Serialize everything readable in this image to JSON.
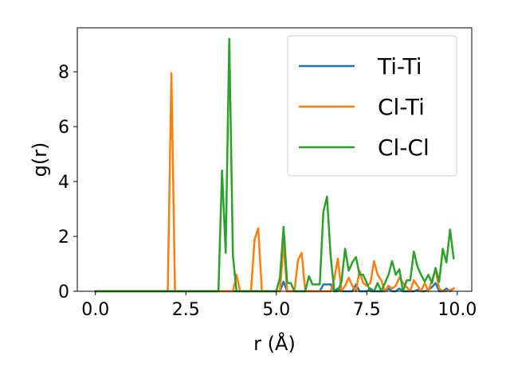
{
  "chart_data": {
    "type": "line",
    "xlabel": "r (Å)",
    "ylabel": "g(r)",
    "xlim": [
      -0.5,
      10.4
    ],
    "ylim": [
      0,
      9.6
    ],
    "xticks": [
      0.0,
      2.5,
      5.0,
      7.5,
      10.0
    ],
    "xtick_labels": [
      "0.0",
      "2.5",
      "5.0",
      "7.5",
      "10.0"
    ],
    "yticks": [
      0,
      2,
      4,
      6,
      8
    ],
    "ytick_labels": [
      "0",
      "2",
      "4",
      "6",
      "8"
    ],
    "grid": false,
    "legend_position": "top-right",
    "series": [
      {
        "name": "Ti-Ti",
        "color": "#1f77b4",
        "x": [
          0.0,
          5.0,
          5.1,
          5.2,
          5.3,
          5.4,
          5.5,
          5.6,
          5.7,
          5.8,
          5.9,
          6.0,
          6.1,
          6.2,
          6.3,
          6.4,
          6.5,
          6.6,
          6.7,
          6.8,
          6.9,
          7.0,
          7.1,
          7.2,
          7.3,
          7.4,
          7.5,
          7.6,
          7.7,
          7.8,
          7.9,
          8.0,
          8.1,
          8.2,
          8.3,
          8.4,
          8.5,
          8.6,
          8.7,
          8.8,
          8.9,
          9.0,
          9.1,
          9.2,
          9.3,
          9.4,
          9.5,
          9.6,
          9.7,
          9.8,
          9.9
        ],
        "y": [
          0.0,
          0.0,
          0.0,
          0.35,
          0.0,
          0.0,
          0.0,
          0.0,
          0.0,
          0.0,
          0.0,
          0.0,
          0.0,
          0.0,
          0.25,
          0.25,
          0.25,
          0.0,
          0.1,
          0.0,
          0.0,
          0.0,
          0.0,
          0.25,
          0.0,
          0.0,
          0.0,
          0.1,
          0.0,
          0.0,
          0.0,
          0.0,
          0.1,
          0.0,
          0.0,
          0.1,
          0.0,
          0.0,
          0.0,
          0.0,
          0.05,
          0.0,
          0.0,
          0.05,
          0.15,
          0.3,
          0.0,
          0.0,
          0.1,
          0.0,
          0.1
        ]
      },
      {
        "name": "Cl-Ti",
        "color": "#ff7f0e",
        "x": [
          0.0,
          2.0,
          2.1,
          2.2,
          3.8,
          3.9,
          4.0,
          4.1,
          4.2,
          4.3,
          4.4,
          4.5,
          4.6,
          4.7,
          4.8,
          4.9,
          5.0,
          5.1,
          5.2,
          5.3,
          5.4,
          5.5,
          5.6,
          5.7,
          5.8,
          5.9,
          6.0,
          6.1,
          6.2,
          6.3,
          6.4,
          6.5,
          6.6,
          6.7,
          6.8,
          6.9,
          7.0,
          7.1,
          7.2,
          7.3,
          7.4,
          7.5,
          7.6,
          7.7,
          7.8,
          7.9,
          8.0,
          8.1,
          8.2,
          8.3,
          8.4,
          8.5,
          8.6,
          8.7,
          8.8,
          8.9,
          9.0,
          9.1,
          9.2,
          9.3,
          9.4,
          9.5,
          9.6,
          9.7,
          9.8,
          9.9
        ],
        "y": [
          0.0,
          0.0,
          7.95,
          0.0,
          0.0,
          0.6,
          0.0,
          0.0,
          0.0,
          0.0,
          1.9,
          2.3,
          0.0,
          0.0,
          0.0,
          0.0,
          0.0,
          0.0,
          1.75,
          0.0,
          0.0,
          0.0,
          1.15,
          1.4,
          0.0,
          0.0,
          0.0,
          0.0,
          0.0,
          0.0,
          0.0,
          0.0,
          0.45,
          1.2,
          0.0,
          0.2,
          0.5,
          0.2,
          0.0,
          0.75,
          0.3,
          0.2,
          0.3,
          1.1,
          0.6,
          0.4,
          0.0,
          0.2,
          0.1,
          0.2,
          0.5,
          0.3,
          0.15,
          0.0,
          0.4,
          0.2,
          0.0,
          0.3,
          0.0,
          0.4,
          0.8,
          0.1,
          0.0,
          0.0,
          0.05,
          0.1
        ]
      },
      {
        "name": "Cl-Cl",
        "color": "#2ca02c",
        "x": [
          0.0,
          3.4,
          3.5,
          3.6,
          3.7,
          3.8,
          3.9,
          4.0,
          4.1,
          4.2,
          4.3,
          4.4,
          4.5,
          4.6,
          4.7,
          4.8,
          4.9,
          5.0,
          5.1,
          5.2,
          5.3,
          5.4,
          5.5,
          5.6,
          5.7,
          5.8,
          5.9,
          6.0,
          6.1,
          6.2,
          6.3,
          6.4,
          6.5,
          6.6,
          6.7,
          6.8,
          6.9,
          7.0,
          7.1,
          7.2,
          7.3,
          7.4,
          7.5,
          7.6,
          7.7,
          7.8,
          7.9,
          8.0,
          8.1,
          8.2,
          8.3,
          8.4,
          8.5,
          8.6,
          8.7,
          8.8,
          8.9,
          9.0,
          9.1,
          9.2,
          9.3,
          9.4,
          9.5,
          9.6,
          9.7,
          9.8,
          9.9
        ],
        "y": [
          0.0,
          0.0,
          4.4,
          1.4,
          9.2,
          1.3,
          0.0,
          0.0,
          0.0,
          0.0,
          0.0,
          0.0,
          0.0,
          0.0,
          0.0,
          0.0,
          0.0,
          0.0,
          0.5,
          2.35,
          0.3,
          0.3,
          0.0,
          0.0,
          0.0,
          0.0,
          0.55,
          0.25,
          0.25,
          0.25,
          2.9,
          3.45,
          1.3,
          0.0,
          0.0,
          0.35,
          1.55,
          0.75,
          1.05,
          1.25,
          0.6,
          0.6,
          0.3,
          0.0,
          0.0,
          0.3,
          0.0,
          0.3,
          0.6,
          1.1,
          0.6,
          0.8,
          0.0,
          0.4,
          0.4,
          1.45,
          0.9,
          0.6,
          0.35,
          0.6,
          0.3,
          0.85,
          0.35,
          1.55,
          1.05,
          2.25,
          1.2
        ]
      }
    ]
  }
}
